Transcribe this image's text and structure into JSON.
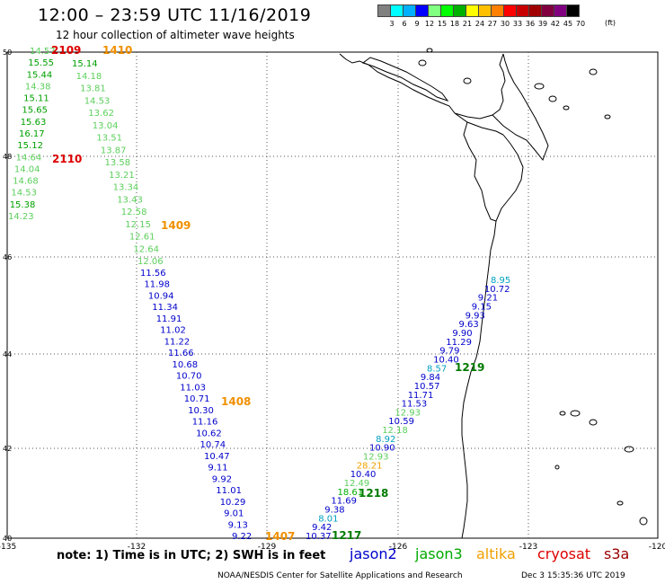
{
  "title": "12:00 – 23:59 UTC 11/16/2019",
  "subtitle": "12 hour collection of altimeter wave heights",
  "colorbar": {
    "units": "(ft)",
    "colors": [
      "#808080",
      "#00ffff",
      "#00b0ff",
      "#0000ff",
      "#80ff80",
      "#00ff00",
      "#00b000",
      "#ffff00",
      "#ffc000",
      "#ff8000",
      "#ff0000",
      "#c80000",
      "#a00000",
      "#800040",
      "#800080",
      "#000000"
    ],
    "labels": [
      "3",
      "6",
      "9",
      "12",
      "15",
      "18",
      "21",
      "24",
      "27",
      "30",
      "33",
      "36",
      "39",
      "42",
      "45",
      "70"
    ]
  },
  "axes": {
    "x_ticks": [
      "-135",
      "-132",
      "-129",
      "-126",
      "-123",
      "-120"
    ],
    "y_ticks": [
      "50",
      "48",
      "46",
      "44",
      "42",
      "40"
    ]
  },
  "tracks": {
    "west_upper": {
      "color": "#2a9a2a",
      "values": [
        "14.57",
        "15.55",
        "15.44",
        "14.38",
        "15.11",
        "15.65",
        "15.63",
        "16.17",
        "15.12",
        "14.64",
        "14.04",
        "14.68",
        "14.53",
        "15.38",
        "14.23"
      ]
    },
    "middle": {
      "upper_values": [
        "15.14",
        "14.18",
        "13.81",
        "14.53",
        "13.62",
        "13.04",
        "13.51",
        "13.87",
        "13.58",
        "13.21",
        "13.34",
        "13.43",
        "12.58",
        "12.15",
        "12.61",
        "12.64",
        "12.06"
      ],
      "lower_values": [
        "11.56",
        "11.98",
        "10.94",
        "11.34",
        "11.91",
        "11.02",
        "11.22",
        "11.66",
        "10.68",
        "10.70",
        "11.03",
        "10.71",
        "10.30",
        "11.16",
        "10.62",
        "10.74",
        "10.47",
        "9.11",
        "9.92",
        "11.01",
        "10.29",
        "9.01",
        "9.13",
        "9.22"
      ]
    },
    "east": {
      "values": [
        "8.95",
        "10.72",
        "9.21",
        "9.15",
        "9.93",
        "9.63",
        "9.90",
        "11.29",
        "9.79",
        "10.40",
        "8.57",
        "9.84",
        "10.57",
        "11.71",
        "11.53",
        "12.93",
        "10.59",
        "12.18",
        "8.92",
        "10.90",
        "12.93",
        "28.21",
        "10.40",
        "12.49",
        "18.61",
        "11.69",
        "9.38",
        "8.01",
        "9.42",
        "10.37"
      ]
    }
  },
  "pass_ids": [
    {
      "id": "2109",
      "color": "#dd0000"
    },
    {
      "id": "1410",
      "color": "#f09000"
    },
    {
      "id": "2110",
      "color": "#dd0000"
    },
    {
      "id": "1409",
      "color": "#f09000"
    },
    {
      "id": "1408",
      "color": "#f09000"
    },
    {
      "id": "1407",
      "color": "#f09000"
    },
    {
      "id": "1219",
      "color": "#007a00"
    },
    {
      "id": "1218",
      "color": "#007a00"
    },
    {
      "id": "1217",
      "color": "#007a00"
    }
  ],
  "note": "note: 1) Time is in UTC; 2) SWH is in feet",
  "satellites": [
    {
      "name": "jason2",
      "color": "#0000cc"
    },
    {
      "name": "jason3",
      "color": "#00aa00"
    },
    {
      "name": "altika",
      "color": "#f0a000"
    },
    {
      "name": "cryosat",
      "color": "#dd0000"
    },
    {
      "name": "s3a",
      "color": "#990000"
    }
  ],
  "footer": "NOAA/NESDIS Center for Satellite Applications and Research",
  "footer_date": "Dec  3 15:35:36 UTC 2019"
}
